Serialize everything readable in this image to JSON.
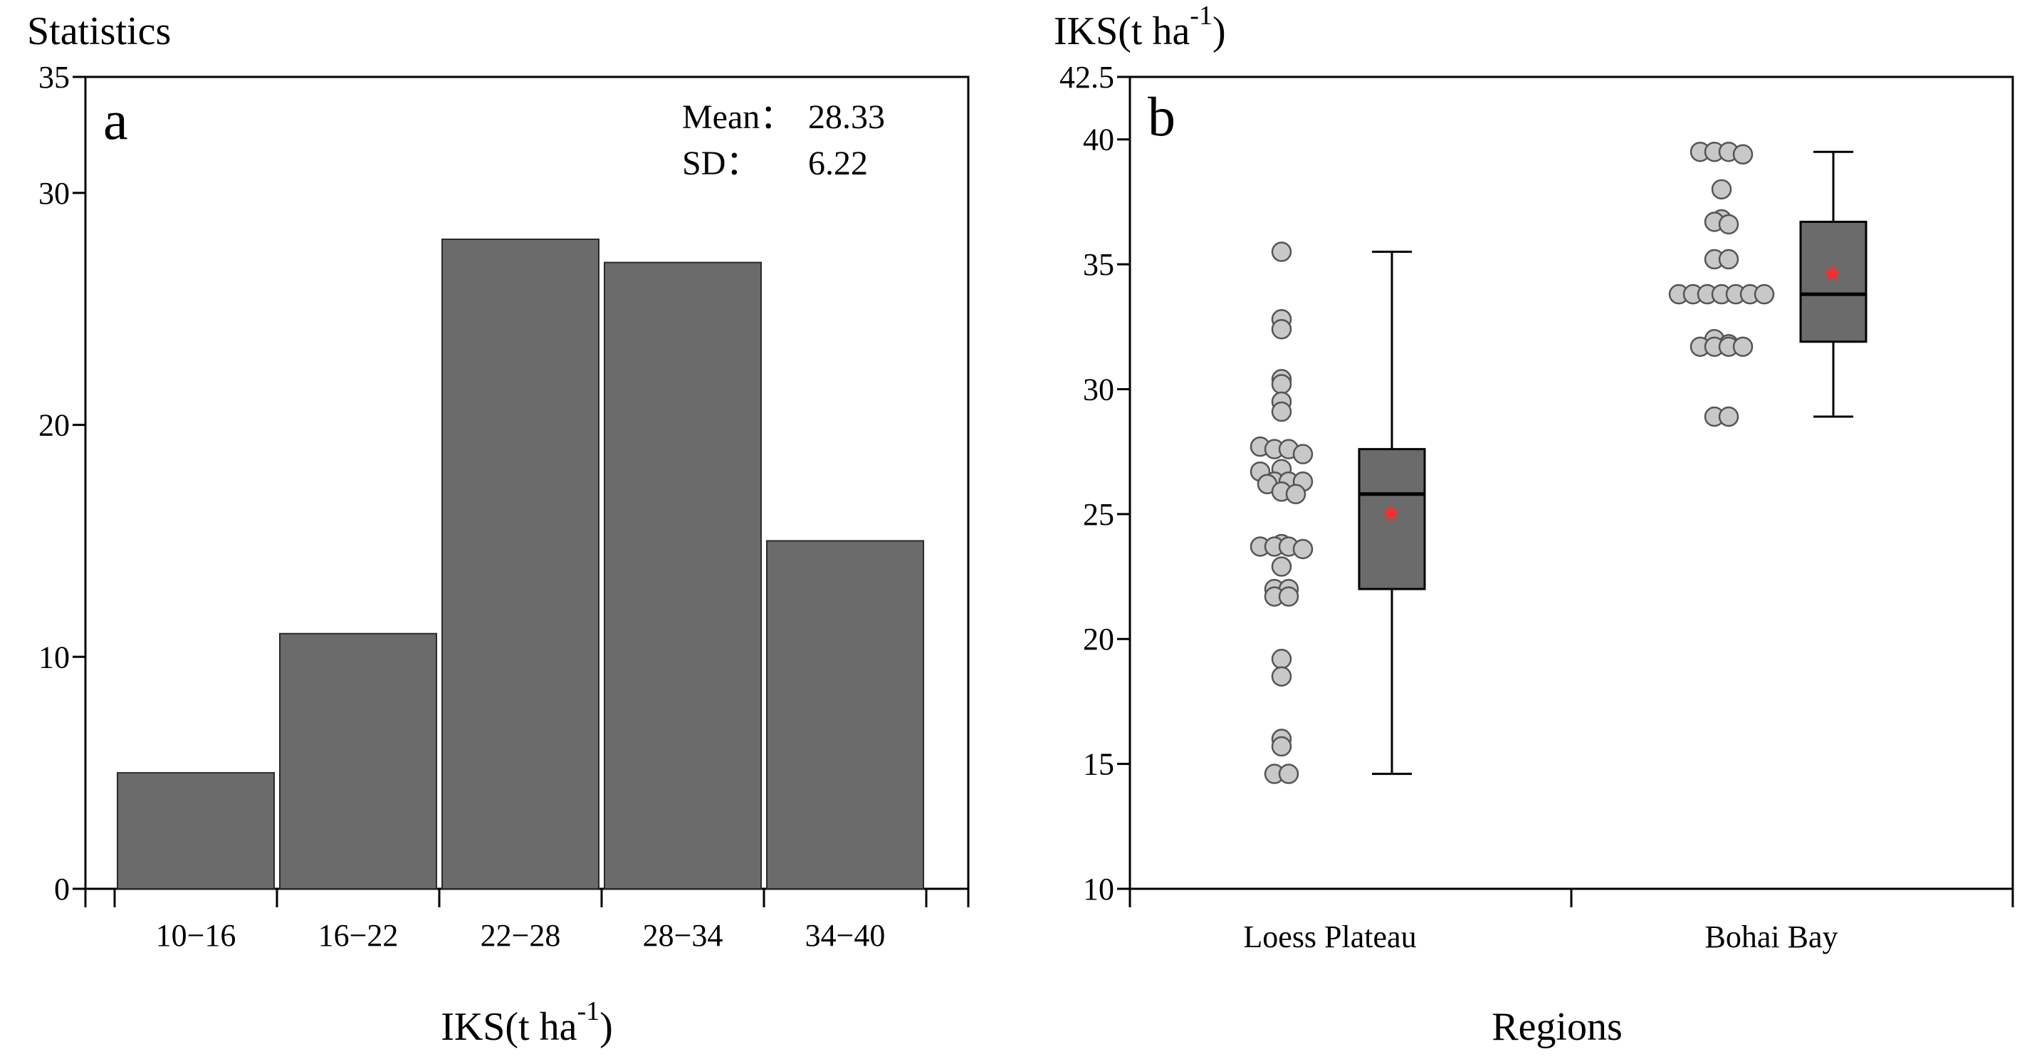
{
  "chart_data": [
    {
      "panel": "a",
      "type": "bar",
      "ylabel": "Statistics",
      "xlabel_main": "IKS(t ha",
      "xlabel_sup": "-1",
      "xlabel_close": ")",
      "categories": [
        "10−16",
        "16−22",
        "22−28",
        "28−34",
        "34−40"
      ],
      "values": [
        5,
        11,
        28,
        27,
        15
      ],
      "ylim": [
        0,
        35
      ],
      "yticks": [
        0,
        10,
        20,
        30,
        35
      ],
      "stats": {
        "mean_label": "Mean：",
        "mean_value": "28.33",
        "sd_label": "SD：",
        "sd_value": "6.22"
      }
    },
    {
      "panel": "b",
      "type": "scatter",
      "ylabel_main": "IKS(t ha",
      "ylabel_sup": "-1",
      "ylabel_close": ")",
      "xlabel": "Regions",
      "ylim": [
        10,
        42.5
      ],
      "yticks": [
        10,
        15,
        20,
        25,
        30,
        35,
        40,
        42.5
      ],
      "groups": [
        {
          "name": "Loess Plateau",
          "points": [
            35.5,
            32.8,
            32.4,
            30.4,
            30.2,
            29.5,
            29.1,
            27.7,
            27.6,
            27.6,
            27.4,
            26.8,
            26.7,
            26.3,
            26.3,
            26.3,
            26.2,
            25.9,
            25.8,
            23.8,
            23.7,
            23.7,
            23.7,
            23.6,
            22.9,
            22.0,
            22.0,
            21.7,
            21.7,
            19.2,
            18.5,
            16.0,
            15.7,
            14.6,
            14.6
          ],
          "box": {
            "q1": 22.0,
            "median": 25.8,
            "q3": 27.6,
            "whisker_low": 14.6,
            "whisker_high": 35.5,
            "mean": 25.0
          }
        },
        {
          "name": "Bohai Bay",
          "points": [
            39.5,
            39.5,
            39.5,
            39.4,
            38.0,
            36.8,
            36.7,
            36.6,
            35.2,
            35.2,
            33.8,
            33.8,
            33.8,
            33.8,
            33.8,
            33.8,
            33.8,
            32.0,
            31.8,
            31.7,
            31.7,
            31.7,
            31.7,
            28.9,
            28.9
          ],
          "box": {
            "q1": 31.9,
            "median": 33.8,
            "q3": 36.7,
            "whisker_low": 28.9,
            "whisker_high": 39.5,
            "mean": 34.6
          }
        }
      ]
    }
  ]
}
